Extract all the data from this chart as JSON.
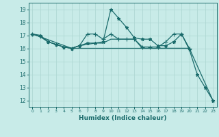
{
  "title": "",
  "xlabel": "Humidex (Indice chaleur)",
  "bg_color": "#c8ebe8",
  "grid_color": "#b0d8d4",
  "line_color": "#1a6b6b",
  "xlim": [
    -0.5,
    23.5
  ],
  "ylim": [
    11.5,
    19.5
  ],
  "yticks": [
    12,
    13,
    14,
    15,
    16,
    17,
    18,
    19
  ],
  "xticks": [
    0,
    1,
    2,
    3,
    4,
    5,
    6,
    7,
    8,
    9,
    10,
    11,
    12,
    13,
    14,
    15,
    16,
    17,
    18,
    19,
    20,
    21,
    22,
    23
  ],
  "lines": [
    {
      "x": [
        0,
        1,
        2,
        3,
        4,
        5,
        6,
        7,
        8,
        9,
        10,
        11,
        12,
        13,
        14,
        15,
        16,
        17,
        18,
        19,
        20,
        21,
        22,
        23
      ],
      "y": [
        17.1,
        17.0,
        16.5,
        16.3,
        16.1,
        16.0,
        16.2,
        16.4,
        16.4,
        16.5,
        19.0,
        18.3,
        17.6,
        16.8,
        16.7,
        16.7,
        16.2,
        16.2,
        16.5,
        17.1,
        15.9,
        14.0,
        13.0,
        12.0
      ],
      "marker": "*",
      "markersize": 3.5
    },
    {
      "x": [
        0,
        1,
        2,
        3,
        4,
        5,
        6,
        7,
        8,
        9,
        10,
        11,
        12,
        13,
        14,
        15,
        16,
        17,
        18,
        19,
        20
      ],
      "y": [
        17.1,
        16.9,
        16.5,
        16.3,
        16.1,
        16.0,
        16.2,
        17.1,
        17.1,
        16.7,
        17.1,
        16.7,
        16.7,
        16.7,
        16.1,
        16.1,
        16.1,
        16.5,
        17.1,
        17.1,
        16.0
      ],
      "marker": "+",
      "markersize": 4
    },
    {
      "x": [
        0,
        1,
        2,
        3,
        4,
        5,
        6,
        7,
        8,
        9,
        10,
        11,
        12,
        13,
        14,
        15,
        16,
        17,
        18,
        19,
        20
      ],
      "y": [
        17.1,
        16.9,
        16.5,
        16.3,
        16.1,
        16.0,
        16.2,
        16.3,
        16.4,
        16.4,
        16.7,
        16.7,
        16.7,
        16.7,
        16.0,
        16.0,
        16.0,
        16.0,
        16.0,
        16.0,
        16.0
      ],
      "marker": null,
      "markersize": 0
    },
    {
      "x": [
        0,
        5,
        20,
        23
      ],
      "y": [
        17.1,
        16.0,
        16.0,
        12.0
      ],
      "marker": null,
      "markersize": 0
    }
  ]
}
